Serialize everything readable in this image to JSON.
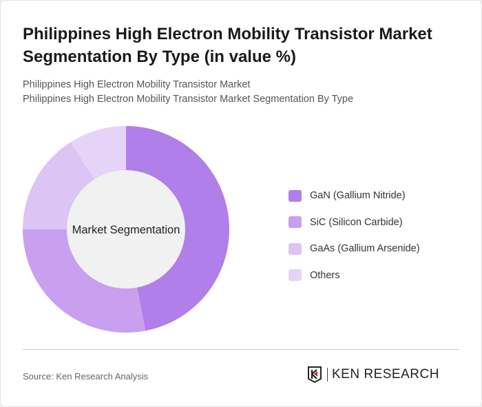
{
  "title": "Philippines High Electron Mobility Transistor Market Segmentation By Type (in value %)",
  "subtitle1": "Philippines High Electron Mobility Transistor Market",
  "subtitle2": "Philippines High Electron Mobility Transistor Market Segmentation By Type",
  "source": "Source: Ken Research Analysis",
  "logo_text": "KEN RESEARCH",
  "chart_data": {
    "type": "pie",
    "donut": true,
    "center_label": "Market Segmentation",
    "categories": [
      "GaN (Gallium Nitride)",
      "SiC (Silicon Carbide)",
      "GaAs (Gallium Arsenide)",
      "Others"
    ],
    "values": [
      47,
      28,
      16,
      9
    ],
    "colors": [
      "#b07fea",
      "#c9a0ef",
      "#dcc4f5",
      "#e6d4f8"
    ],
    "legend_position": "right"
  }
}
